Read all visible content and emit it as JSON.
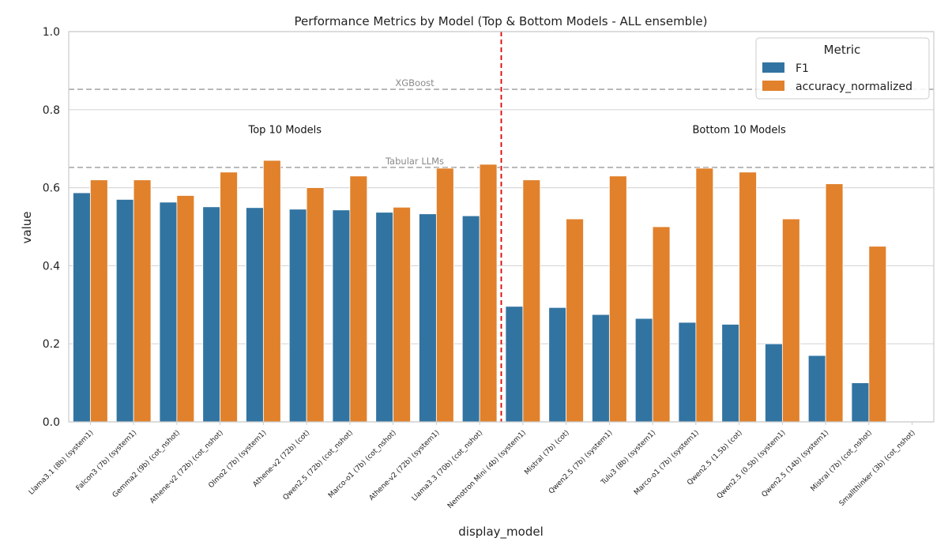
{
  "chart_data": {
    "type": "bar",
    "title": "Performance Metrics by Model (Top & Bottom Models - ALL ensemble)",
    "xlabel": "display_model",
    "ylabel": "value",
    "ylim": [
      0,
      1
    ],
    "yticks": [
      "0.0",
      "0.2",
      "0.4",
      "0.6",
      "0.8",
      "1.0"
    ],
    "grid": true,
    "legend": {
      "title": "Metric",
      "placement": "top-right"
    },
    "categories": [
      "Llama3.1 (8b) (system1)",
      "Falcon3 (7b) (system1)",
      "Gemma2 (9b) (cot_nshot)",
      "Athene-v2 (72b) (cot_nshot)",
      "Olmo2 (7b) (system1)",
      "Athene-v2 (72b) (cot)",
      "Qwen2.5 (72b) (cot_nshot)",
      "Marco-o1 (7b) (cot_nshot)",
      "Athene-v2 (72b) (system1)",
      "Llama3.3 (70b) (cot_nshot)",
      "Nemotron Mini (4b) (system1)",
      "Mistral (7b) (cot)",
      "Qwen2.5 (7b) (system1)",
      "Tulu3 (8b) (system1)",
      "Marco-o1 (7b) (system1)",
      "Qwen2.5 (1.5b) (cot)",
      "Qwen2.5 (0.5b) (system1)",
      "Qwen2.5 (14b) (system1)",
      "Mistral (7b) (cot_nshot)",
      "Smallthinker (3b) (cot_nshot)"
    ],
    "series": [
      {
        "name": "F1",
        "color": "#3274a1",
        "values": [
          0.587,
          0.57,
          0.563,
          0.551,
          0.549,
          0.545,
          0.543,
          0.537,
          0.533,
          0.528,
          0.296,
          0.293,
          0.275,
          0.265,
          0.255,
          0.25,
          0.2,
          0.17,
          0.1,
          0.0
        ]
      },
      {
        "name": "accuracy_normalized",
        "color": "#e1812c",
        "values": [
          0.62,
          0.62,
          0.58,
          0.64,
          0.67,
          0.6,
          0.63,
          0.55,
          0.65,
          0.66,
          0.62,
          0.52,
          0.63,
          0.5,
          0.65,
          0.64,
          0.52,
          0.61,
          0.45,
          0.0
        ]
      }
    ],
    "reference_lines": [
      {
        "label": "XGBoost",
        "y": 0.852,
        "color": "#aaaaaa",
        "style": "dashed"
      },
      {
        "label": "Tabular LLMs",
        "y": 0.652,
        "color": "#aaaaaa",
        "style": "dashed"
      }
    ],
    "divider": {
      "between_categories": [
        9,
        10
      ],
      "color": "#dd0000",
      "style": "dashed"
    },
    "group_annotations": [
      {
        "text": "Top 10 Models",
        "y": 0.75,
        "center_category": 4.5
      },
      {
        "text": "Bottom 10 Models",
        "y": 0.75,
        "center_category": 15
      }
    ]
  }
}
